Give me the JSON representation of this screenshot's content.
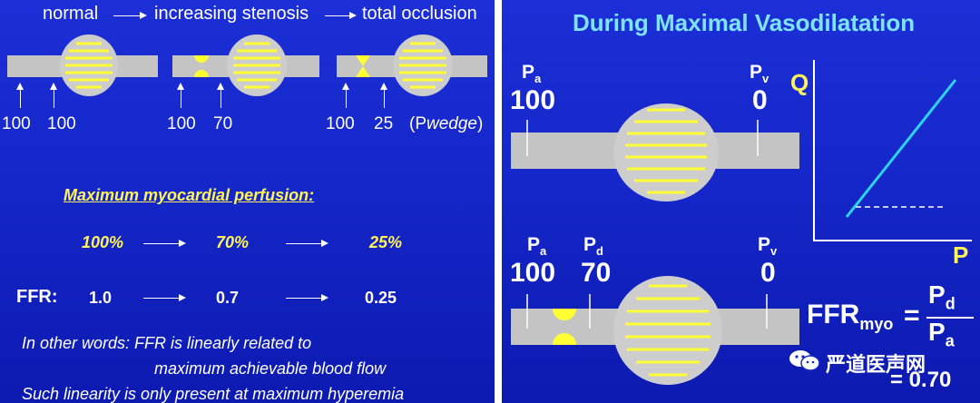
{
  "left": {
    "header": {
      "normal": "normal",
      "increasing": "increasing stenosis",
      "total": "total occlusion"
    },
    "pressures": {
      "normal_a": "100",
      "normal_b": "100",
      "stenosis_a": "100",
      "stenosis_b": "70",
      "occlusion_a": "100",
      "occlusion_b": "25",
      "wedge_prefix": "(P",
      "wedge_word": "wedge",
      "wedge_suffix": ")"
    },
    "perfusion_title": "Maximum myocardial perfusion:",
    "perfusion_values": [
      "100%",
      "70%",
      "25%"
    ],
    "ffr_label": "FFR:",
    "ffr_values": [
      "1.0",
      "0.7",
      "0.25"
    ],
    "note_line1": "In other words: FFR is linearly related to",
    "note_line2": "maximum achievable blood flow",
    "note_line3": "Such linearity is only present at maximum hyperemia"
  },
  "right": {
    "title": "During Maximal Vasodilatation",
    "top_vessel": {
      "pa_letter": "P",
      "pa_sub": "a",
      "pa_value": "100",
      "pv_letter": "P",
      "pv_sub": "v",
      "pv_value": "0"
    },
    "bottom_vessel": {
      "pa_letter": "P",
      "pa_sub": "a",
      "pa_value": "100",
      "pd_letter": "P",
      "pd_sub": "d",
      "pd_value": "70",
      "pv_letter": "P",
      "pv_sub": "v",
      "pv_value": "0"
    },
    "graph": {
      "y_label": "Q",
      "x_label": "P"
    },
    "formula": {
      "lhs": "FFR",
      "lhs_sub": "myo",
      "equals": "=",
      "num_letter": "P",
      "num_sub": "d",
      "den_letter": "P",
      "den_sub": "a",
      "result": "= 0.70"
    },
    "watermark": "严道医声网",
    "colors": {
      "vessel": "#c4c4c4",
      "myocardium": "#cdcdcd",
      "stripes": "#ffff33",
      "graph_line": "#2ed3f2",
      "title": "#7fe3ff"
    }
  }
}
